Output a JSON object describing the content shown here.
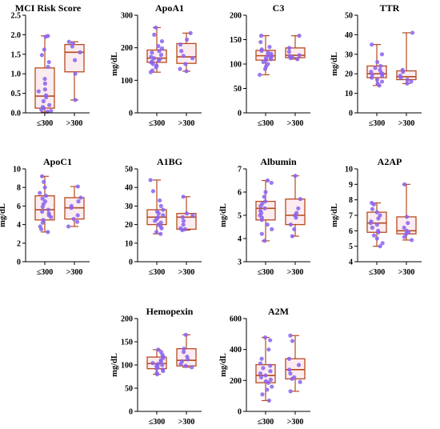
{
  "figure_colors": {
    "box_fill": "#fbecef",
    "box_edge": "#b84a1e",
    "median": "#b84a1e",
    "whisker": "#b84a1e",
    "point": "#8a63ee",
    "axis": "#000000"
  },
  "chart_data": [
    {
      "type": "box",
      "title": "MCI Risk Score",
      "ylabel": "",
      "ylim": [
        0,
        2.5
      ],
      "yticks": [
        "0.0",
        "0.5",
        "1.0",
        "1.5",
        "2.0",
        "2.5"
      ],
      "categories": [
        "≤300",
        ">300"
      ],
      "boxes": [
        {
          "min": 0.02,
          "q1": 0.12,
          "median": 0.43,
          "q3": 1.15,
          "max": 1.97,
          "points": [
            1.97,
            1.95,
            1.62,
            1.48,
            1.3,
            1.18,
            0.87,
            0.75,
            0.6,
            0.55,
            0.45,
            0.4,
            0.3,
            0.2,
            0.15,
            0.12,
            0.08,
            0.05,
            0.03
          ]
        },
        {
          "min": 0.33,
          "q1": 1.05,
          "median": 1.55,
          "q3": 1.75,
          "max": 1.82,
          "points": [
            1.82,
            1.78,
            1.7,
            1.55,
            1.35,
            1.0,
            0.33
          ]
        }
      ]
    },
    {
      "type": "box",
      "title": "ApoA1",
      "ylabel": "mg/dL",
      "ylim": [
        0,
        300
      ],
      "yticks": [
        "0",
        "100",
        "200",
        "300"
      ],
      "categories": [
        "≤300",
        ">300"
      ],
      "boxes": [
        {
          "min": 125,
          "q1": 155,
          "median": 168,
          "q3": 193,
          "max": 262,
          "points": [
            262,
            240,
            220,
            205,
            198,
            190,
            185,
            178,
            172,
            168,
            165,
            160,
            158,
            155,
            150,
            145,
            140,
            130,
            125
          ]
        },
        {
          "min": 128,
          "q1": 152,
          "median": 172,
          "q3": 213,
          "max": 245,
          "points": [
            245,
            225,
            210,
            190,
            175,
            168,
            150,
            135,
            128
          ]
        }
      ]
    },
    {
      "type": "box",
      "title": "C3",
      "ylabel": "",
      "ylim": [
        0,
        200
      ],
      "yticks": [
        "0",
        "50",
        "100",
        "150",
        "200"
      ],
      "categories": [
        "≤300",
        ">300"
      ],
      "boxes": [
        {
          "min": 78,
          "q1": 108,
          "median": 117,
          "q3": 128,
          "max": 158,
          "points": [
            158,
            145,
            135,
            130,
            127,
            124,
            121,
            118,
            116,
            114,
            112,
            110,
            108,
            104,
            100,
            95,
            90,
            78
          ]
        },
        {
          "min": 110,
          "q1": 113,
          "median": 118,
          "q3": 133,
          "max": 158,
          "points": [
            158,
            133,
            125,
            118,
            116,
            114,
            112,
            110
          ]
        }
      ]
    },
    {
      "type": "box",
      "title": "TTR",
      "ylabel": "mg/dL",
      "ylim": [
        0,
        50
      ],
      "yticks": [
        "0",
        "10",
        "20",
        "30",
        "40",
        "50"
      ],
      "categories": [
        "≤300",
        ">300"
      ],
      "boxes": [
        {
          "min": 14,
          "q1": 18,
          "median": 20,
          "q3": 24,
          "max": 35,
          "points": [
            35,
            30,
            26,
            24,
            23,
            22,
            21,
            20.5,
            20,
            19.5,
            19,
            18,
            17,
            16,
            15,
            14
          ]
        },
        {
          "min": 15,
          "q1": 17,
          "median": 18.5,
          "q3": 21.5,
          "max": 41,
          "points": [
            41,
            22,
            21,
            19,
            18,
            17,
            16,
            15
          ]
        }
      ]
    },
    {
      "type": "box",
      "title": "ApoC1",
      "ylabel": "mg/dL",
      "ylim": [
        0,
        10
      ],
      "yticks": [
        "0",
        "2",
        "4",
        "6",
        "8",
        "10"
      ],
      "categories": [
        "≤300",
        ">300"
      ],
      "boxes": [
        {
          "min": 3.2,
          "q1": 4.5,
          "median": 5.6,
          "q3": 7.1,
          "max": 9.2,
          "points": [
            9.2,
            8.6,
            8.0,
            7.4,
            7.1,
            6.8,
            6.5,
            6.2,
            5.9,
            5.6,
            5.4,
            5.2,
            5.0,
            4.8,
            4.5,
            4.2,
            3.8,
            3.5,
            3.2
          ]
        },
        {
          "min": 3.8,
          "q1": 4.6,
          "median": 5.8,
          "q3": 6.9,
          "max": 8.1,
          "points": [
            8.1,
            6.9,
            6.5,
            6.0,
            5.8,
            5.0,
            4.6,
            4.3,
            3.8
          ]
        }
      ]
    },
    {
      "type": "box",
      "title": "A1BG",
      "ylabel": "",
      "ylim": [
        0,
        50
      ],
      "yticks": [
        "0",
        "10",
        "20",
        "30",
        "40",
        "50"
      ],
      "categories": [
        "≤300",
        ">300"
      ],
      "boxes": [
        {
          "min": 15,
          "q1": 20,
          "median": 24,
          "q3": 28,
          "max": 44,
          "points": [
            44,
            38,
            33,
            30,
            28,
            27,
            26,
            25,
            24,
            23,
            22,
            21,
            20,
            19,
            18,
            16,
            15
          ]
        },
        {
          "min": 17,
          "q1": 17.5,
          "median": 24,
          "q3": 26,
          "max": 35,
          "points": [
            35,
            26,
            25,
            24,
            22,
            20,
            18,
            17.5,
            17
          ]
        }
      ]
    },
    {
      "type": "box",
      "title": "Albumin",
      "ylabel": "mg/dL",
      "ylim": [
        3,
        7
      ],
      "yticks": [
        "3",
        "4",
        "5",
        "6",
        "7"
      ],
      "categories": [
        "≤300",
        ">300"
      ],
      "boxes": [
        {
          "min": 3.9,
          "q1": 4.8,
          "median": 5.3,
          "q3": 5.6,
          "max": 6.5,
          "points": [
            6.5,
            6.4,
            6.0,
            5.8,
            5.6,
            5.5,
            5.4,
            5.3,
            5.2,
            5.1,
            5.0,
            4.9,
            4.8,
            4.6,
            4.4,
            4.2,
            3.9
          ]
        },
        {
          "min": 4.1,
          "q1": 4.6,
          "median": 5.0,
          "q3": 5.7,
          "max": 6.7,
          "points": [
            6.7,
            5.7,
            5.3,
            5.1,
            5.0,
            4.9,
            4.6,
            4.4,
            4.1
          ]
        }
      ]
    },
    {
      "type": "box",
      "title": "A2AP",
      "ylabel": "mg/dL",
      "ylim": [
        4,
        10
      ],
      "yticks": [
        "4",
        "5",
        "6",
        "7",
        "8",
        "9",
        "10"
      ],
      "categories": [
        "≤300",
        ">300"
      ],
      "boxes": [
        {
          "min": 5.0,
          "q1": 5.9,
          "median": 6.5,
          "q3": 7.2,
          "max": 7.8,
          "points": [
            7.8,
            7.7,
            7.4,
            7.2,
            7.0,
            6.8,
            6.6,
            6.5,
            6.4,
            6.2,
            6.0,
            5.9,
            5.7,
            5.5,
            5.2,
            5.0
          ]
        },
        {
          "min": 5.4,
          "q1": 5.8,
          "median": 6.0,
          "q3": 6.9,
          "max": 9.0,
          "points": [
            9.0,
            6.9,
            6.5,
            6.2,
            6.0,
            5.9,
            5.8,
            5.6,
            5.4
          ]
        }
      ]
    },
    {
      "type": "box",
      "title": "Hemopexin",
      "ylabel": "mg/dL",
      "ylim": [
        0,
        200
      ],
      "yticks": [
        "0",
        "50",
        "100",
        "150",
        "200"
      ],
      "categories": [
        "≤300",
        ">300"
      ],
      "boxes": [
        {
          "min": 80,
          "q1": 92,
          "median": 103,
          "q3": 117,
          "max": 133,
          "points": [
            133,
            128,
            122,
            118,
            115,
            110,
            107,
            104,
            102,
            100,
            98,
            95,
            92,
            90,
            87,
            83,
            80
          ]
        },
        {
          "min": 95,
          "q1": 98,
          "median": 110,
          "q3": 135,
          "max": 165,
          "points": [
            165,
            135,
            128,
            118,
            112,
            108,
            102,
            98,
            95
          ]
        }
      ]
    },
    {
      "type": "box",
      "title": "A2M",
      "ylabel": "mg/dL",
      "ylim": [
        0,
        600
      ],
      "yticks": [
        "0",
        "200",
        "400",
        "600"
      ],
      "categories": [
        "≤300",
        ">300"
      ],
      "boxes": [
        {
          "min": 70,
          "q1": 185,
          "median": 232,
          "q3": 302,
          "max": 478,
          "points": [
            478,
            460,
            400,
            340,
            310,
            295,
            280,
            260,
            245,
            232,
            220,
            205,
            195,
            185,
            160,
            140,
            110,
            70
          ]
        },
        {
          "min": 130,
          "q1": 210,
          "median": 270,
          "q3": 340,
          "max": 490,
          "points": [
            490,
            455,
            340,
            300,
            270,
            245,
            220,
            210,
            190,
            130
          ]
        }
      ]
    }
  ]
}
